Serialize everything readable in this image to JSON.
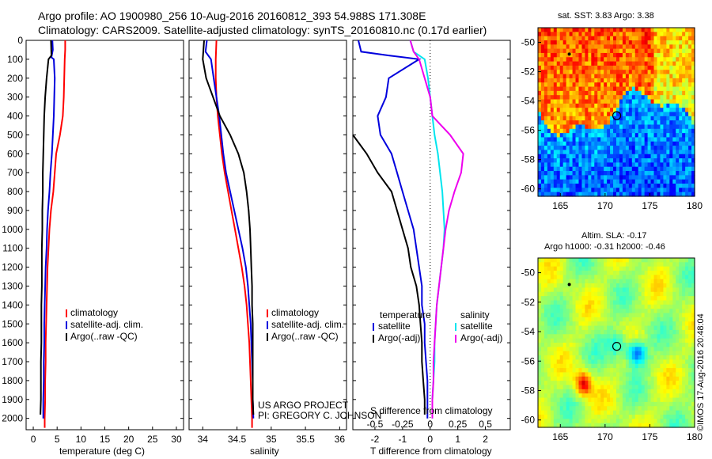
{
  "header": {
    "line1": "Argo profile: AO 1900980_256 10-Aug-2016 20160812_393 54.988S 171.308E",
    "line2": "Climatology: CARS2009. Satellite-adjusted climatology: synTS_20160810.nc (0.17d earlier)"
  },
  "colors": {
    "climatology": "#ff0000",
    "satellite": "#0000dd",
    "argo": "#000000",
    "sat_salt": "#00e5ee",
    "argo_salt": "#ee00ee"
  },
  "depth_axis": {
    "ticks": [
      0,
      100,
      200,
      300,
      400,
      500,
      600,
      700,
      800,
      900,
      1000,
      1100,
      1200,
      1300,
      1400,
      1500,
      1600,
      1700,
      1800,
      1900,
      2000
    ],
    "range": [
      0,
      2060
    ],
    "units": "dbar (inverted)"
  },
  "chart_data": [
    {
      "type": "line",
      "panel": "temperature",
      "xlabel": "temperature (deg C)",
      "xlim": [
        -1.5,
        31.5
      ],
      "xticks": [
        0,
        5,
        10,
        15,
        20,
        25,
        30
      ],
      "ylim": [
        0,
        2060
      ],
      "legend": [
        "climatology",
        "satellite-adj. clim.",
        "Argo(..raw -QC)"
      ],
      "series": [
        {
          "name": "climatology",
          "color_key": "climatology",
          "points": [
            [
              6.7,
              0
            ],
            [
              6.7,
              50
            ],
            [
              6.6,
              100
            ],
            [
              6.5,
              200
            ],
            [
              6.4,
              300
            ],
            [
              6.2,
              400
            ],
            [
              5.6,
              500
            ],
            [
              4.8,
              600
            ],
            [
              4.5,
              700
            ],
            [
              4.2,
              800
            ],
            [
              3.7,
              900
            ],
            [
              3.4,
              1000
            ],
            [
              3.2,
              1100
            ],
            [
              3.0,
              1200
            ],
            [
              2.9,
              1300
            ],
            [
              2.8,
              1400
            ],
            [
              2.7,
              1500
            ],
            [
              2.6,
              1600
            ],
            [
              2.6,
              1700
            ],
            [
              2.5,
              1800
            ],
            [
              2.5,
              1900
            ],
            [
              2.4,
              2000
            ],
            [
              2.4,
              2050
            ]
          ]
        },
        {
          "name": "satellite-adj. clim.",
          "color_key": "satellite",
          "points": [
            [
              4.0,
              0
            ],
            [
              4.1,
              50
            ],
            [
              3.8,
              90
            ],
            [
              4.3,
              100
            ],
            [
              4.5,
              200
            ],
            [
              4.4,
              300
            ],
            [
              4.3,
              400
            ],
            [
              4.1,
              500
            ],
            [
              3.9,
              600
            ],
            [
              3.6,
              700
            ],
            [
              3.4,
              800
            ],
            [
              3.1,
              900
            ],
            [
              2.9,
              1000
            ],
            [
              2.8,
              1100
            ],
            [
              2.6,
              1200
            ],
            [
              2.5,
              1300
            ],
            [
              2.4,
              1400
            ],
            [
              2.3,
              1500
            ],
            [
              2.3,
              1600
            ],
            [
              2.2,
              1700
            ],
            [
              2.2,
              1800
            ],
            [
              2.1,
              1900
            ],
            [
              2.1,
              2000
            ]
          ]
        },
        {
          "name": "Argo(..raw -QC)",
          "color_key": "argo",
          "points": [
            [
              3.7,
              0
            ],
            [
              3.8,
              80
            ],
            [
              3.2,
              100
            ],
            [
              2.8,
              200
            ],
            [
              2.5,
              300
            ],
            [
              2.3,
              400
            ],
            [
              2.2,
              500
            ],
            [
              2.1,
              600
            ],
            [
              2.0,
              700
            ],
            [
              2.0,
              800
            ],
            [
              1.9,
              900
            ],
            [
              1.9,
              1000
            ],
            [
              1.8,
              1100
            ],
            [
              1.8,
              1200
            ],
            [
              1.8,
              1300
            ],
            [
              1.7,
              1400
            ],
            [
              1.7,
              1500
            ],
            [
              1.7,
              1600
            ],
            [
              1.6,
              1700
            ],
            [
              1.6,
              1800
            ],
            [
              1.6,
              1900
            ],
            [
              1.5,
              1980
            ]
          ]
        }
      ]
    },
    {
      "type": "line",
      "panel": "salinity",
      "xlabel": "salinity",
      "xlim": [
        33.8,
        36.1
      ],
      "xticks": [
        34,
        34.5,
        35,
        35.5,
        36
      ],
      "ylim": [
        0,
        2060
      ],
      "legend": [
        "climatology",
        "satellite-adj. clim.",
        "Argo(..raw -QC)"
      ],
      "notes": [
        "US ARGO PROJECT",
        "PI: GREGORY C. JOHNSON"
      ],
      "series": [
        {
          "name": "climatology",
          "color_key": "climatology",
          "points": [
            [
              34.2,
              0
            ],
            [
              34.19,
              100
            ],
            [
              34.19,
              200
            ],
            [
              34.2,
              300
            ],
            [
              34.22,
              400
            ],
            [
              34.25,
              500
            ],
            [
              34.28,
              600
            ],
            [
              34.32,
              700
            ],
            [
              34.37,
              800
            ],
            [
              34.42,
              900
            ],
            [
              34.47,
              1000
            ],
            [
              34.52,
              1100
            ],
            [
              34.57,
              1200
            ],
            [
              34.61,
              1300
            ],
            [
              34.64,
              1400
            ],
            [
              34.66,
              1500
            ],
            [
              34.68,
              1600
            ],
            [
              34.69,
              1700
            ],
            [
              34.7,
              1800
            ],
            [
              34.71,
              1900
            ],
            [
              34.72,
              2000
            ],
            [
              34.72,
              2050
            ]
          ]
        },
        {
          "name": "satellite-adj. clim.",
          "color_key": "satellite",
          "points": [
            [
              34.06,
              0
            ],
            [
              34.04,
              60
            ],
            [
              34.12,
              100
            ],
            [
              34.16,
              200
            ],
            [
              34.2,
              300
            ],
            [
              34.24,
              400
            ],
            [
              34.27,
              500
            ],
            [
              34.3,
              600
            ],
            [
              34.34,
              700
            ],
            [
              34.4,
              800
            ],
            [
              34.46,
              900
            ],
            [
              34.52,
              1000
            ],
            [
              34.58,
              1100
            ],
            [
              34.63,
              1200
            ],
            [
              34.66,
              1300
            ],
            [
              34.68,
              1400
            ],
            [
              34.7,
              1500
            ],
            [
              34.71,
              1600
            ],
            [
              34.72,
              1700
            ],
            [
              34.73,
              1800
            ],
            [
              34.73,
              1900
            ],
            [
              34.74,
              2000
            ]
          ]
        },
        {
          "name": "Argo(..raw -QC)",
          "color_key": "argo",
          "points": [
            [
              34.02,
              0
            ],
            [
              34.0,
              100
            ],
            [
              34.05,
              200
            ],
            [
              34.15,
              300
            ],
            [
              34.25,
              400
            ],
            [
              34.4,
              500
            ],
            [
              34.52,
              600
            ],
            [
              34.6,
              700
            ],
            [
              34.64,
              800
            ],
            [
              34.67,
              900
            ],
            [
              34.69,
              1000
            ],
            [
              34.7,
              1100
            ],
            [
              34.71,
              1200
            ],
            [
              34.72,
              1300
            ],
            [
              34.72,
              1400
            ],
            [
              34.73,
              1500
            ],
            [
              34.73,
              1600
            ],
            [
              34.73,
              1700
            ],
            [
              34.73,
              1800
            ],
            [
              34.73,
              1900
            ],
            [
              34.74,
              1980
            ]
          ]
        }
      ]
    },
    {
      "type": "line",
      "panel": "difference",
      "xlabel": "T difference from climatology",
      "x2label": "S difference from climatology",
      "xlim": [
        -2.8,
        2.9
      ],
      "xticks": [
        -2,
        -1,
        0,
        1,
        2
      ],
      "x2lim": [
        -0.7,
        0.725
      ],
      "x2ticks": [
        -0.5,
        -0.25,
        0,
        0.25,
        0.5
      ],
      "x2ticklabels": [
        "-0.5",
        "-0.25",
        "0",
        "0.25",
        "0.5"
      ],
      "ylim": [
        0,
        2060
      ],
      "legend_left_title": "temperature",
      "legend_left": [
        "satellite",
        "Argo(-adj)"
      ],
      "legend_right_title": "salinity",
      "legend_right": [
        "satellite",
        "Argo(-adj)"
      ],
      "series": [
        {
          "name": "temperature satellite",
          "axis": "T",
          "color_key": "satellite",
          "points": [
            [
              -2.6,
              0
            ],
            [
              -2.5,
              60
            ],
            [
              -1.5,
              80
            ],
            [
              -0.4,
              100
            ],
            [
              -1.5,
              200
            ],
            [
              -1.6,
              300
            ],
            [
              -1.9,
              400
            ],
            [
              -1.8,
              500
            ],
            [
              -1.4,
              600
            ],
            [
              -1.2,
              700
            ],
            [
              -1.0,
              800
            ],
            [
              -0.8,
              900
            ],
            [
              -0.6,
              1000
            ],
            [
              -0.5,
              1100
            ],
            [
              -0.4,
              1200
            ],
            [
              -0.3,
              1300
            ],
            [
              -0.3,
              1400
            ],
            [
              -0.2,
              1500
            ],
            [
              -0.2,
              1600
            ],
            [
              -0.15,
              1700
            ],
            [
              -0.1,
              1800
            ],
            [
              -0.1,
              1900
            ],
            [
              -0.1,
              2000
            ]
          ]
        },
        {
          "name": "temperature Argo(-adj)",
          "axis": "T",
          "color_key": "argo",
          "points": [
            [
              -3.0,
              500
            ],
            [
              -2.3,
              600
            ],
            [
              -1.9,
              700
            ],
            [
              -1.4,
              800
            ],
            [
              -1.2,
              900
            ],
            [
              -1.0,
              1000
            ],
            [
              -0.8,
              1100
            ],
            [
              -0.7,
              1200
            ],
            [
              -0.5,
              1300
            ],
            [
              -0.4,
              1400
            ],
            [
              -0.35,
              1500
            ],
            [
              -0.3,
              1600
            ],
            [
              -0.3,
              1700
            ],
            [
              -0.25,
              1800
            ],
            [
              -0.2,
              1900
            ],
            [
              -0.2,
              1980
            ]
          ]
        },
        {
          "name": "salinity satellite",
          "axis": "S",
          "color_key": "sat_salt",
          "points": [
            [
              -0.18,
              0
            ],
            [
              -0.15,
              60
            ],
            [
              -0.05,
              100
            ],
            [
              -0.02,
              200
            ],
            [
              0.0,
              300
            ],
            [
              0.02,
              400
            ],
            [
              0.04,
              500
            ],
            [
              0.07,
              600
            ],
            [
              0.09,
              700
            ],
            [
              0.11,
              800
            ],
            [
              0.12,
              900
            ],
            [
              0.13,
              1000
            ],
            [
              0.12,
              1100
            ],
            [
              0.1,
              1200
            ],
            [
              0.08,
              1300
            ],
            [
              0.06,
              1400
            ],
            [
              0.05,
              1500
            ],
            [
              0.04,
              1600
            ],
            [
              0.04,
              1700
            ],
            [
              0.03,
              1800
            ],
            [
              0.02,
              1900
            ],
            [
              0.02,
              2000
            ]
          ]
        },
        {
          "name": "salinity Argo(-adj)",
          "axis": "S",
          "color_key": "argo_salt",
          "points": [
            [
              -0.18,
              0
            ],
            [
              -0.15,
              60
            ],
            [
              -0.1,
              100
            ],
            [
              -0.05,
              200
            ],
            [
              0.0,
              300
            ],
            [
              0.02,
              400
            ],
            [
              0.18,
              500
            ],
            [
              0.3,
              600
            ],
            [
              0.28,
              700
            ],
            [
              0.22,
              800
            ],
            [
              0.17,
              900
            ],
            [
              0.14,
              1000
            ],
            [
              0.12,
              1100
            ],
            [
              0.1,
              1200
            ],
            [
              0.08,
              1300
            ],
            [
              0.06,
              1400
            ],
            [
              0.05,
              1500
            ],
            [
              0.04,
              1600
            ],
            [
              0.03,
              1700
            ],
            [
              0.03,
              1800
            ],
            [
              0.02,
              1900
            ],
            [
              0.02,
              2000
            ]
          ]
        }
      ]
    },
    {
      "type": "heatmap",
      "panel": "sst_map",
      "title": "sat. SST: 3.83 Argo: 3.38",
      "xlim": [
        162.5,
        180
      ],
      "ylim": [
        -60.5,
        -49
      ],
      "xticks": [
        165,
        170,
        175,
        180
      ],
      "yticks": [
        -50,
        -52,
        -54,
        -56,
        -58,
        -60
      ],
      "argo_position": [
        171.3,
        -55.0
      ]
    },
    {
      "type": "heatmap",
      "panel": "sla_map",
      "title_lines": [
        "Altim. SLA: -0.17",
        "Argo h1000: -0.31 h2000: -0.46"
      ],
      "xlim": [
        162.5,
        180
      ],
      "ylim": [
        -60.5,
        -49
      ],
      "xticks": [
        165,
        170,
        175,
        180
      ],
      "yticks": [
        -50,
        -52,
        -54,
        -56,
        -58,
        -60
      ],
      "argo_position": [
        171.3,
        -55.0
      ]
    }
  ],
  "credit": "©IMOS 17-Aug-2016 20:48:04"
}
